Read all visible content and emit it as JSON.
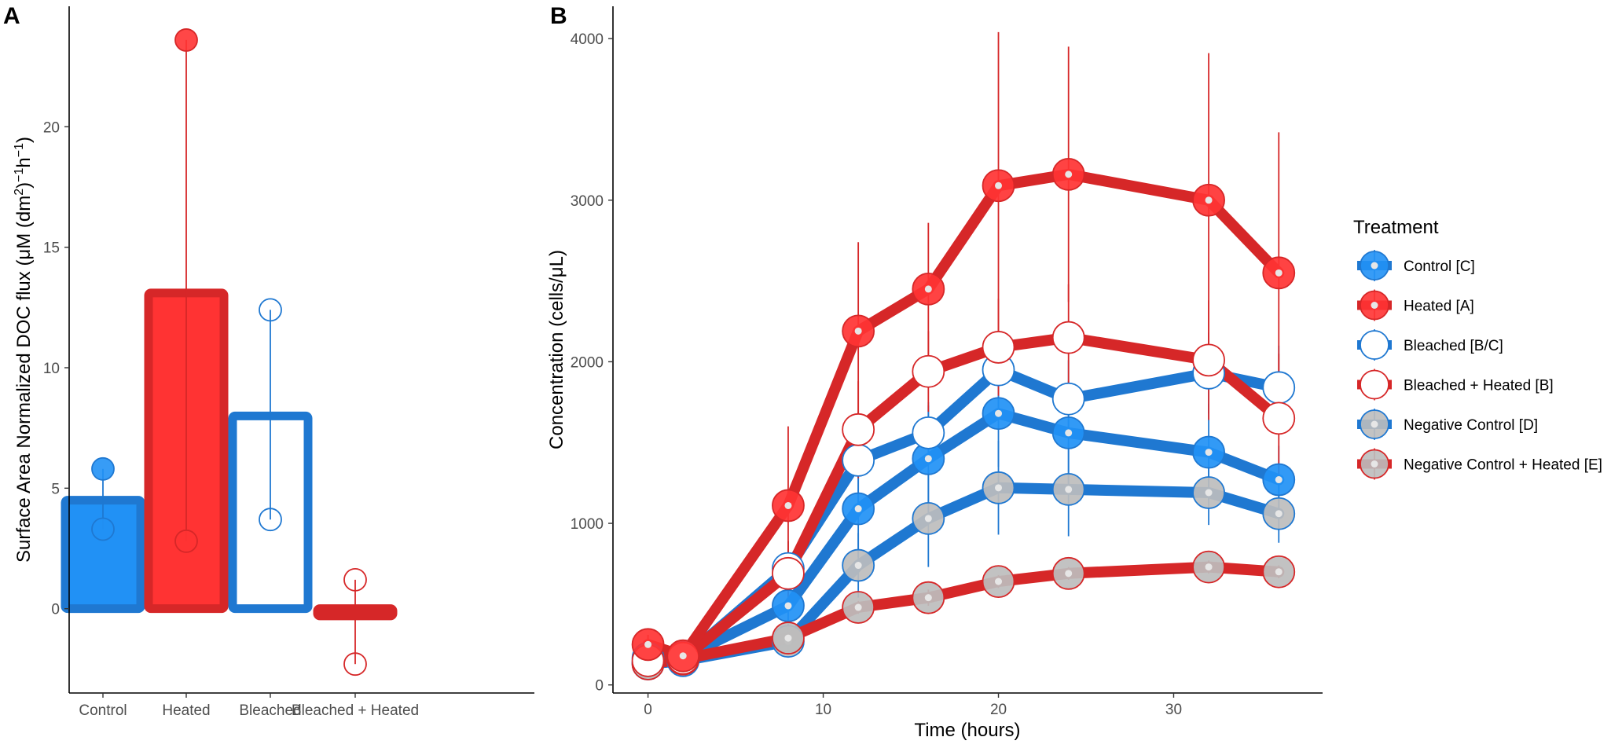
{
  "colors": {
    "blue": "#1f78d1",
    "blue_fill": "#2191f5",
    "red": "#d62728",
    "red_fill": "#ff3333",
    "grey_fill": "#bdbdbd",
    "white": "#ffffff"
  },
  "panel_a": {
    "label": "A"
  },
  "panel_b": {
    "label": "B"
  },
  "chart_data": [
    {
      "type": "bar",
      "title": "",
      "xlabel": "",
      "ylabel_main": "Surface Area Normalized DOC flux (μM (dm",
      "ylabel_sup1": "2",
      "ylabel_mid": ")",
      "ylabel_sup2": "−1",
      "ylabel_h": "h",
      "ylabel_sup3": "−1",
      "ylabel_end": ")",
      "ylim": [
        -3.5,
        25
      ],
      "yticks": [
        0,
        5,
        10,
        15,
        20
      ],
      "ytick_labels": [
        "0",
        "5",
        "10",
        "15",
        "20"
      ],
      "categories": [
        "Control",
        "Heated",
        "Bleached",
        "Bleached + Heated"
      ],
      "values": [
        4.5,
        13.1,
        8.0,
        -0.3
      ],
      "bar_styles": [
        "blue-filled",
        "red-filled",
        "blue-open",
        "red-open"
      ],
      "points": [
        [
          5.8,
          3.3
        ],
        [
          23.6,
          2.8
        ],
        [
          12.4,
          3.7
        ],
        [
          1.2,
          -2.3
        ]
      ]
    },
    {
      "type": "line",
      "title": "",
      "xlabel": "Time (hours)",
      "ylabel": "Concentration (cells/μL)",
      "xlim": [
        -2,
        38.5
      ],
      "ylim": [
        -50,
        4200
      ],
      "xticks": [
        0,
        10,
        20,
        30
      ],
      "xtick_labels": [
        "0",
        "10",
        "20",
        "30"
      ],
      "yticks": [
        0,
        1000,
        2000,
        3000,
        4000
      ],
      "ytick_labels": [
        "0",
        "1000",
        "2000",
        "3000",
        "4000"
      ],
      "x": [
        0,
        2,
        8,
        12,
        16,
        20,
        24,
        32,
        36
      ],
      "legend_title": "Treatment",
      "legend_position": "right",
      "series": [
        {
          "name": "Control [C]",
          "style": "blue-filled",
          "values": [
            165,
            170,
            490,
            1090,
            1400,
            1680,
            1560,
            1440,
            1270
          ],
          "err": [
            60,
            60,
            180,
            300,
            330,
            330,
            320,
            300,
            210
          ]
        },
        {
          "name": "Heated [A]",
          "style": "red-filled",
          "values": [
            250,
            180,
            1110,
            2190,
            2450,
            3090,
            3160,
            3000,
            2550
          ],
          "err": [
            60,
            60,
            490,
            550,
            410,
            950,
            790,
            910,
            870
          ]
        },
        {
          "name": "Bleached [B/C]",
          "style": "blue-open",
          "values": [
            140,
            160,
            720,
            1390,
            1560,
            1950,
            1770,
            1930,
            1840
          ],
          "err": [
            50,
            50,
            170,
            300,
            190,
            230,
            240,
            250,
            260
          ]
        },
        {
          "name": "Bleached + Heated [B]",
          "style": "red-open",
          "values": [
            150,
            165,
            690,
            1580,
            1940,
            2090,
            2150,
            2010,
            1650
          ],
          "err": [
            50,
            50,
            200,
            300,
            250,
            300,
            330,
            370,
            400
          ]
        },
        {
          "name": "Negative Control [D]",
          "style": "grey-blue",
          "values": [
            130,
            150,
            270,
            740,
            1030,
            1220,
            1210,
            1190,
            1060
          ],
          "err": [
            40,
            40,
            60,
            200,
            300,
            290,
            290,
            200,
            180
          ]
        },
        {
          "name": "Negative Control + Heated [E]",
          "style": "grey-red",
          "values": [
            130,
            160,
            290,
            480,
            540,
            640,
            690,
            730,
            700
          ],
          "err": [
            30,
            30,
            40,
            40,
            50,
            40,
            40,
            40,
            40
          ]
        }
      ]
    }
  ]
}
